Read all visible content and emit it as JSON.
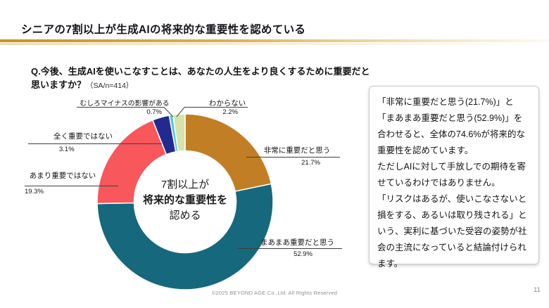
{
  "slide": {
    "title": "シニアの7割以上が生成AIの将来的な重要性を認めている",
    "question": "Q.今後、生成AIを使いこなすことは、あなたの人生をより良くするために重要だと思いますか？",
    "question_note": "（SA/n=414）",
    "footer": "©2025 BEYOND AGE Co.,Ltd. All Rights Reserved",
    "page_number": "11"
  },
  "comment_box": {
    "paragraphs": [
      "「非常に重要だと思う(21.7%)」と「まあまあ重要だと思う(52.9%)」を合わせると、全体の74.6%が将来的な重要性を認めています。",
      "ただしAIに対して手放しでの期待を寄せているわけではありません。",
      "「リスクはあるが、使いこなさないと損をする、あるいは取り残される」という、実利に基づいた受容の姿勢が社会の主流になっていると結論付けられます。"
    ]
  },
  "chart_data": {
    "type": "pie",
    "subtype": "donut",
    "start_angle_deg": 0,
    "direction": "clockwise",
    "segments": [
      {
        "label": "非常に重要だと思う",
        "value": 21.7,
        "pct_label": "21.7%",
        "color": "#C17E24"
      },
      {
        "label": "まあまあ重要だと思う",
        "value": 52.9,
        "pct_label": "52.9%",
        "color": "#16697D"
      },
      {
        "label": "あまり重要ではない",
        "value": 19.3,
        "pct_label": "19.3%",
        "color": "#F8575B"
      },
      {
        "label": "全く重要ではない",
        "value": 3.1,
        "pct_label": "3.1%",
        "color": "#232A8F"
      },
      {
        "label": "むしろマイナスの影響がある",
        "value": 0.7,
        "pct_label": "0.7%",
        "color": "#58C7D9"
      },
      {
        "label": "わからない",
        "value": 2.2,
        "pct_label": "2.2%",
        "color": "#D7E3AC"
      }
    ],
    "center_text": {
      "line1": "7割以上が",
      "line2": "将来的な重要性を",
      "line3": "認める"
    }
  }
}
